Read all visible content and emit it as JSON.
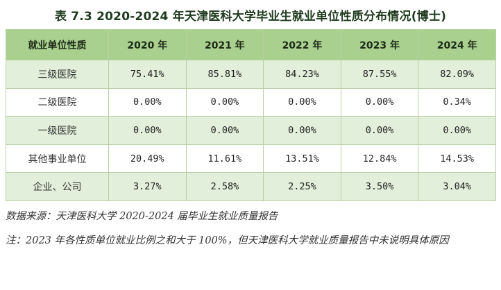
{
  "title": "表 7.3 2020-2024 年天津医科大学毕业生就业单位性质分布情况(博士)",
  "table": {
    "headers": [
      "就业单位性质",
      "2020 年",
      "2021 年",
      "2022 年",
      "2023 年",
      "2024 年"
    ],
    "rows": [
      {
        "category": "三级医院",
        "values": [
          "75.41%",
          "85.81%",
          "84.23%",
          "87.55%",
          "82.09%"
        ]
      },
      {
        "category": "二级医院",
        "values": [
          "0.00%",
          "0.00%",
          "0.00%",
          "0.00%",
          "0.34%"
        ]
      },
      {
        "category": "一级医院",
        "values": [
          "0.00%",
          "0.00%",
          "0.00%",
          "0.00%",
          "0.00%"
        ]
      },
      {
        "category": "其他事业单位",
        "values": [
          "20.49%",
          "11.61%",
          "13.51%",
          "12.84%",
          "14.53%"
        ]
      },
      {
        "category": "企业、公司",
        "values": [
          "3.27%",
          "2.58%",
          "2.25%",
          "3.50%",
          "3.04%"
        ]
      }
    ]
  },
  "notes": {
    "source": "数据来源：天津医科大学 2020-2024 届毕业生就业质量报告",
    "remark": "注：2023 年各性质单位就业比例之和大于 100%，但天津医科大学就业质量报告中未说明具体原因"
  }
}
